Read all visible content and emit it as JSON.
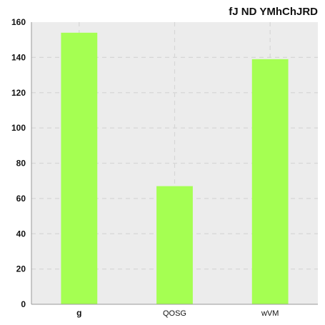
{
  "chart_data": {
    "type": "bar",
    "title": "fJ ND YMhChJRD",
    "categories": [
      "g",
      "QOSG",
      "wVM"
    ],
    "values": [
      154,
      67,
      139
    ],
    "ylim": [
      0,
      160
    ],
    "yticks": [
      0,
      20,
      40,
      60,
      80,
      100,
      120,
      140,
      160
    ],
    "grid": true,
    "colors": {
      "bar": "#a5ff52",
      "plot_background": "#ececec",
      "grid": "#d6d6d6",
      "axis": "#999999"
    }
  }
}
